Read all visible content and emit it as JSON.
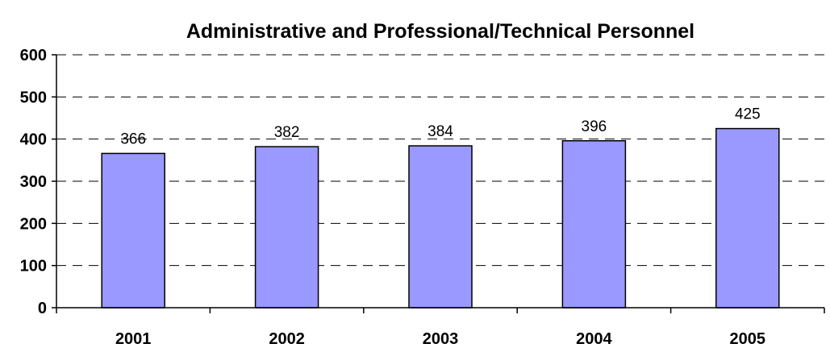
{
  "chart_data": {
    "type": "bar",
    "title": "Administrative and Professional/Technical Personnel",
    "xlabel": "",
    "ylabel": "",
    "categories": [
      "2001",
      "2002",
      "2003",
      "2004",
      "2005"
    ],
    "values": [
      366,
      382,
      384,
      396,
      425
    ],
    "data_labels": [
      "366",
      "382",
      "384",
      "396",
      "425"
    ],
    "ylim": [
      0,
      600
    ],
    "yticks": [
      0,
      100,
      200,
      300,
      400,
      500,
      600
    ],
    "ytick_labels": [
      "0",
      "100",
      "200",
      "300",
      "400",
      "500",
      "600"
    ],
    "grid": true,
    "grid_style": "dashed",
    "legend": "none",
    "bar_color": "#9999ff",
    "bar_edge_color": "#000000"
  }
}
